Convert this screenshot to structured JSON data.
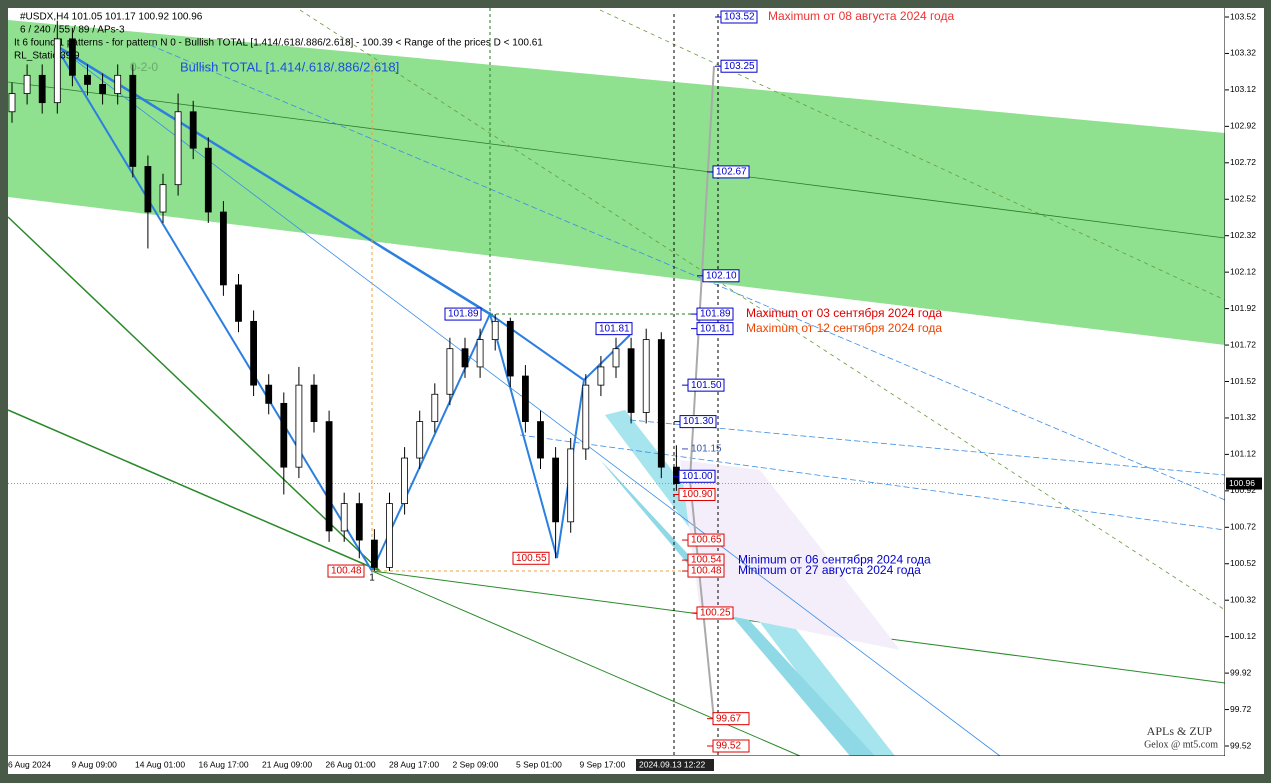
{
  "chart_data": {
    "type": "candlestick",
    "header": [
      "#USDX,H4  101.05 101.17 100.92 100.96",
      "6 / 240 / 55 / 89 / APs-3",
      "It 6 found 1 patterns  -  for pattern N 0 - Bullish TOTAL [1.414/.618/.886/2.618] - 100.39 < Range of the prices D < 100.61",
      "RL_Static 39.9"
    ],
    "pattern_title": "Bullish TOTAL [1.414/.618/.886/2.618]",
    "pattern_code": "0-2-0",
    "point_label": "1",
    "watermark": [
      "APLs & ZUP",
      "Gelox @ mt5.com"
    ],
    "xlabels": [
      "6 Aug 2024",
      "9 Aug 09:00",
      "14 Aug 01:00",
      "16 Aug 17:00",
      "21 Aug 09:00",
      "26 Aug 01:00",
      "28 Aug 17:00",
      "2 Sep 09:00",
      "5 Sep 01:00",
      "9 Sep 17:00"
    ],
    "cursor_label": "2024.09.13 12:22",
    "ylim": [
      99.52,
      103.52
    ],
    "yticks": [
      99.52,
      99.72,
      99.92,
      100.12,
      100.32,
      100.52,
      100.72,
      100.92,
      101.12,
      101.32,
      101.52,
      101.72,
      101.92,
      102.12,
      102.32,
      102.52,
      102.72,
      102.92,
      103.12,
      103.32,
      103.52
    ],
    "last_price": {
      "value": 100.96,
      "label": "100.96"
    },
    "open": [
      103.0,
      103.1,
      103.2,
      103.05,
      103.4,
      103.2,
      103.15,
      103.1,
      103.2,
      102.7,
      102.45,
      102.6,
      103.0,
      102.8,
      102.45,
      102.05,
      101.85,
      101.5,
      101.4,
      101.05,
      101.5,
      101.3,
      100.7,
      100.85,
      100.65,
      100.5,
      100.85,
      101.1,
      101.3,
      101.45,
      101.7,
      101.6,
      101.75,
      101.85,
      101.55,
      101.3,
      101.1,
      100.75,
      101.15,
      101.5,
      101.6,
      101.7,
      101.35,
      101.75,
      101.05
    ],
    "high": [
      103.16,
      103.26,
      103.26,
      103.5,
      103.46,
      103.26,
      103.21,
      103.26,
      103.26,
      102.76,
      102.66,
      103.1,
      103.06,
      102.86,
      102.51,
      102.11,
      101.91,
      101.56,
      101.46,
      101.6,
      101.56,
      101.36,
      100.91,
      100.91,
      100.71,
      100.91,
      101.16,
      101.36,
      101.51,
      101.76,
      101.76,
      101.81,
      101.89,
      101.87,
      101.61,
      101.36,
      101.16,
      101.21,
      101.56,
      101.66,
      101.76,
      101.76,
      101.81,
      101.79,
      101.17
    ],
    "low": [
      102.94,
      103.04,
      102.99,
      102.99,
      103.14,
      103.09,
      103.04,
      103.04,
      102.64,
      102.25,
      102.39,
      102.54,
      102.74,
      102.39,
      101.99,
      101.79,
      101.44,
      101.34,
      100.9,
      100.99,
      101.24,
      100.64,
      100.64,
      100.55,
      100.48,
      100.48,
      100.79,
      101.04,
      101.24,
      101.39,
      101.54,
      101.54,
      101.69,
      101.49,
      101.24,
      101.04,
      100.55,
      100.69,
      101.09,
      101.44,
      101.54,
      101.29,
      101.29,
      100.99,
      100.92
    ],
    "close": [
      103.1,
      103.2,
      103.05,
      103.4,
      103.2,
      103.15,
      103.1,
      103.2,
      102.7,
      102.45,
      102.6,
      103.0,
      102.8,
      102.45,
      102.05,
      101.85,
      101.5,
      101.4,
      101.05,
      101.5,
      101.3,
      100.7,
      100.85,
      100.65,
      100.5,
      100.85,
      101.1,
      101.3,
      101.45,
      101.7,
      101.6,
      101.75,
      101.85,
      101.55,
      101.3,
      101.1,
      100.75,
      101.15,
      101.5,
      101.6,
      101.7,
      101.35,
      101.75,
      101.05,
      100.96
    ],
    "levels": [
      {
        "value": 103.52,
        "label": "103.52",
        "color": "#0000cc"
      },
      {
        "value": 103.25,
        "label": "103.25",
        "color": "#0000cc"
      },
      {
        "value": 102.67,
        "label": "102.67",
        "color": "#0000cc"
      },
      {
        "value": 102.1,
        "label": "102.10",
        "color": "#0000cc"
      },
      {
        "value": 101.89,
        "label": "101.89",
        "color": "#0000cc"
      },
      {
        "value": 101.81,
        "label": "101.81",
        "color": "#0000cc"
      },
      {
        "value": 101.5,
        "label": "101.50",
        "color": "#0000cc"
      },
      {
        "value": 101.3,
        "label": "101.30",
        "color": "#0000cc"
      },
      {
        "value": 101.15,
        "label": "101.15",
        "color": "#3355aa"
      },
      {
        "value": 101.0,
        "label": "101.00",
        "color": "#0000cc"
      },
      {
        "value": 100.9,
        "label": "100.90",
        "color": "#dd0000"
      },
      {
        "value": 100.65,
        "label": "100.65",
        "color": "#dd0000"
      },
      {
        "value": 100.54,
        "label": "100.54",
        "color": "#dd0000"
      },
      {
        "value": 100.48,
        "label": "100.48",
        "color": "#dd0000"
      },
      {
        "value": 100.25,
        "label": "100.25",
        "color": "#dd0000"
      },
      {
        "value": 99.67,
        "label": "99.67",
        "color": "#dd0000"
      },
      {
        "value": 99.52,
        "label": "99.52",
        "color": "#dd0000"
      }
    ],
    "points": [
      {
        "value": 101.89,
        "label": "101.89",
        "color": "#0000cc"
      },
      {
        "value": 101.81,
        "label": "101.81",
        "color": "#0000cc"
      },
      {
        "value": 100.55,
        "label": "100.55",
        "color": "#dd0000"
      },
      {
        "value": 100.48,
        "label": "100.48",
        "color": "#dd0000"
      }
    ],
    "notes": [
      {
        "value": 103.52,
        "text": "Maximum от 08 августа 2024 года",
        "color": "#ee3333"
      },
      {
        "value": 101.89,
        "text": "Maximum от 03 сентября 2024 года",
        "color": "#dd0000"
      },
      {
        "value": 101.81,
        "text": "Maximum от 12 сентября 2024 года",
        "color": "#ee4400"
      },
      {
        "value": 100.54,
        "text": "Minimum от 06 сентября 2024 года",
        "color": "#0000cc"
      },
      {
        "value": 100.48,
        "text": "Minimum от 27 августа 2024 года",
        "color": "#0000cc"
      }
    ]
  }
}
